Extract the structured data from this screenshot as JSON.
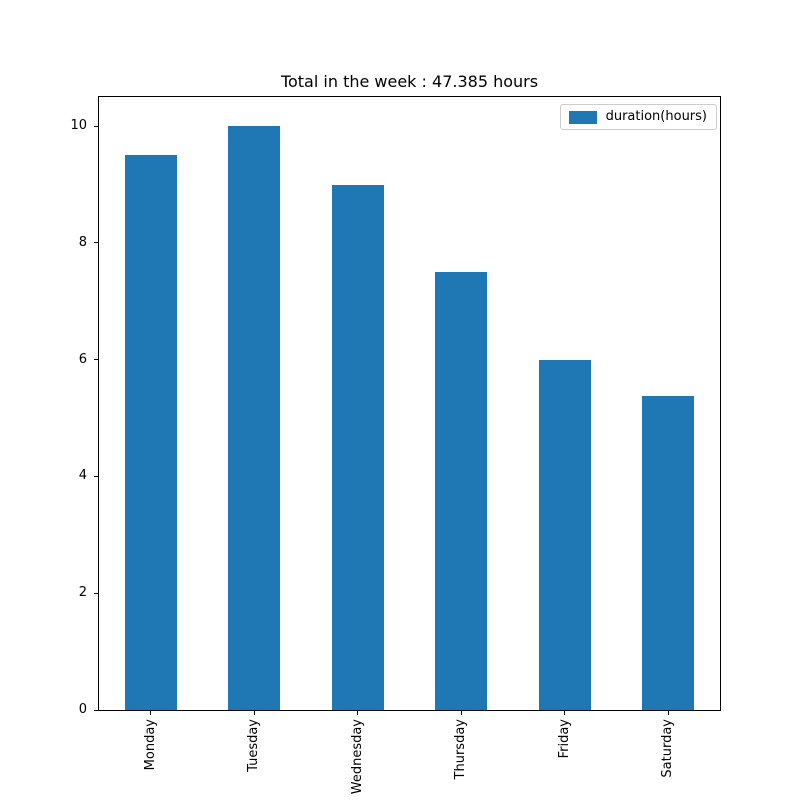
{
  "chart_data": {
    "type": "bar",
    "title": "Total in the week : 47.385 hours",
    "categories": [
      "Monday",
      "Tuesday",
      "Wednesday",
      "Thursday",
      "Friday",
      "Saturday"
    ],
    "series": [
      {
        "name": "duration(hours)",
        "values": [
          9.5,
          10.0,
          9.0,
          7.5,
          6.0,
          5.385
        ]
      }
    ],
    "xlabel": "",
    "ylabel": "",
    "ylim": [
      0,
      10.5
    ],
    "yticks": [
      0,
      2,
      4,
      6,
      8,
      10
    ],
    "x_tick_rotation_deg": 90,
    "grid": false,
    "legend_position": "upper right",
    "colors": {
      "bar": "#1f77b4",
      "axis": "#000000",
      "legend_border": "#cccccc",
      "background": "#ffffff"
    }
  }
}
